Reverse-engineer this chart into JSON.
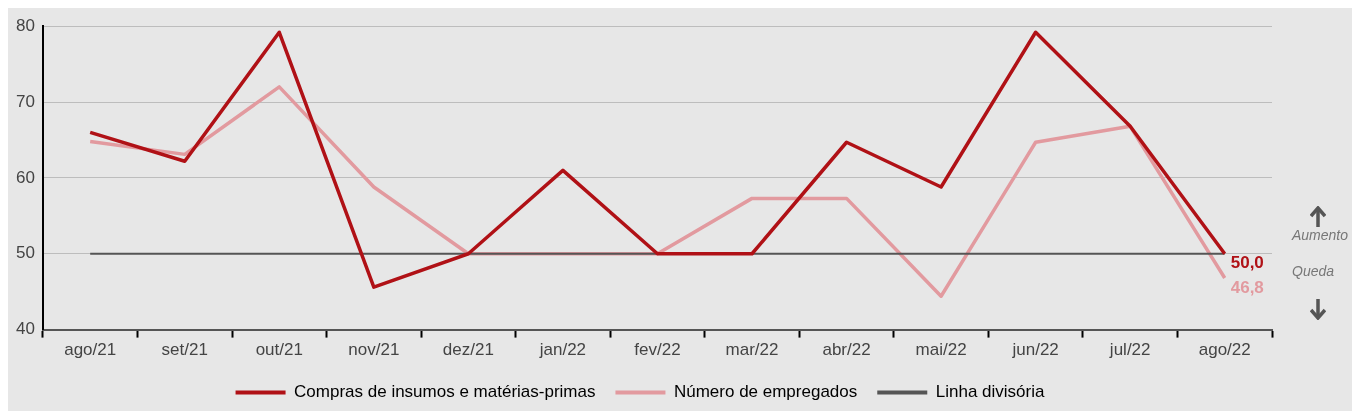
{
  "chart_data": {
    "type": "line",
    "categories": [
      "ago/21",
      "set/21",
      "out/21",
      "nov/21",
      "dez/21",
      "jan/22",
      "fev/22",
      "mar/22",
      "abr/22",
      "mai/22",
      "jun/22",
      "jul/22",
      "ago/22"
    ],
    "series": [
      {
        "name": "Compras de insumos e matérias-primas",
        "color": "#b01116",
        "values": [
          66.0,
          62.2,
          79.2,
          45.6,
          50.0,
          61.0,
          50.0,
          50.0,
          64.7,
          58.8,
          79.2,
          66.8,
          50.0
        ],
        "value_labels": [
          null,
          null,
          null,
          null,
          null,
          null,
          null,
          null,
          null,
          null,
          null,
          null,
          "50,0"
        ]
      },
      {
        "name": "Número de empregados",
        "color": "#e29a9f",
        "values": [
          64.8,
          63.1,
          72.0,
          58.8,
          50.0,
          50.0,
          50.0,
          57.3,
          57.3,
          44.4,
          64.7,
          66.8,
          46.8
        ],
        "value_labels": [
          null,
          null,
          null,
          null,
          null,
          null,
          null,
          null,
          null,
          null,
          null,
          null,
          "46,8"
        ]
      },
      {
        "name": "Linha divisória",
        "color": "#555555",
        "values": [
          50,
          50,
          50,
          50,
          50,
          50,
          50,
          50,
          50,
          50,
          50,
          50,
          50
        ]
      }
    ],
    "ylim": [
      40,
      80
    ],
    "yticks": [
      40,
      50,
      60,
      70,
      80
    ],
    "grid": "y",
    "legend": "bottom",
    "marker": "none",
    "line_style": "solid",
    "annotations": [
      "Aumento",
      "Queda"
    ]
  }
}
